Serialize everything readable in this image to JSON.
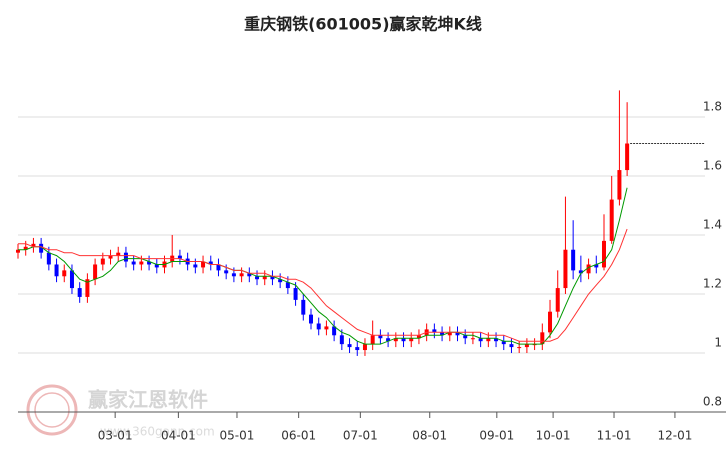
{
  "chart_data": {
    "type": "candlestick",
    "title": "重庆钢铁(601005)赢家乾坤K线",
    "watermark": {
      "name": "赢家江恩软件",
      "url": "www.360gann.com"
    },
    "up_color": "#ff0000",
    "down_color": "#0000ff",
    "xlim": [
      0,
      89.1
    ],
    "xticks": [
      {
        "value": 12.6,
        "label": "03-01"
      },
      {
        "value": 20.8,
        "label": "04-01"
      },
      {
        "value": 28.4,
        "label": "05-01"
      },
      {
        "value": 36.4,
        "label": "06-01"
      },
      {
        "value": 44.4,
        "label": "07-01"
      },
      {
        "value": 53.4,
        "label": "08-01"
      },
      {
        "value": 62.1,
        "label": "09-01"
      },
      {
        "value": 69.4,
        "label": "10-01"
      },
      {
        "value": 77.3,
        "label": "11-01"
      },
      {
        "value": 85.2,
        "label": "12-01"
      }
    ],
    "ylim": [
      0.8,
      2.01
    ],
    "yticks": [
      0.8,
      1,
      1.2,
      1.4,
      1.6,
      1.8
    ],
    "grid": true,
    "reference_line": 1.71,
    "candles": {
      "open": [
        1.34,
        1.35,
        1.36,
        1.37,
        1.34,
        1.3,
        1.26,
        1.28,
        1.22,
        1.19,
        1.25,
        1.3,
        1.32,
        1.33,
        1.34,
        1.31,
        1.3,
        1.31,
        1.3,
        1.29,
        1.31,
        1.33,
        1.32,
        1.3,
        1.29,
        1.31,
        1.3,
        1.28,
        1.27,
        1.26,
        1.27,
        1.26,
        1.25,
        1.26,
        1.25,
        1.24,
        1.22,
        1.18,
        1.13,
        1.1,
        1.08,
        1.09,
        1.06,
        1.03,
        1.02,
        1.01,
        1.03,
        1.06,
        1.05,
        1.04,
        1.05,
        1.04,
        1.05,
        1.06,
        1.08,
        1.07,
        1.06,
        1.07,
        1.06,
        1.05,
        1.05,
        1.04,
        1.05,
        1.04,
        1.03,
        1.02,
        1.02,
        1.03,
        1.03,
        1.07,
        1.14,
        1.22,
        1.35,
        1.28,
        1.27,
        1.3,
        1.29,
        1.38,
        1.52,
        1.62
      ],
      "high": [
        1.37,
        1.38,
        1.39,
        1.39,
        1.36,
        1.32,
        1.3,
        1.3,
        1.24,
        1.27,
        1.32,
        1.34,
        1.35,
        1.36,
        1.36,
        1.33,
        1.33,
        1.33,
        1.32,
        1.33,
        1.4,
        1.35,
        1.34,
        1.32,
        1.33,
        1.33,
        1.32,
        1.3,
        1.29,
        1.29,
        1.29,
        1.28,
        1.28,
        1.28,
        1.27,
        1.26,
        1.24,
        1.2,
        1.15,
        1.12,
        1.11,
        1.11,
        1.08,
        1.05,
        1.04,
        1.05,
        1.11,
        1.08,
        1.07,
        1.07,
        1.07,
        1.07,
        1.08,
        1.1,
        1.1,
        1.09,
        1.09,
        1.09,
        1.08,
        1.07,
        1.07,
        1.07,
        1.07,
        1.06,
        1.05,
        1.04,
        1.05,
        1.05,
        1.1,
        1.18,
        1.28,
        1.53,
        1.45,
        1.33,
        1.32,
        1.33,
        1.47,
        1.6,
        1.89,
        1.85
      ],
      "low": [
        1.32,
        1.33,
        1.34,
        1.32,
        1.28,
        1.24,
        1.24,
        1.2,
        1.17,
        1.17,
        1.23,
        1.28,
        1.3,
        1.31,
        1.29,
        1.28,
        1.28,
        1.28,
        1.27,
        1.27,
        1.29,
        1.3,
        1.28,
        1.27,
        1.27,
        1.28,
        1.26,
        1.25,
        1.24,
        1.24,
        1.24,
        1.23,
        1.23,
        1.23,
        1.22,
        1.2,
        1.16,
        1.11,
        1.08,
        1.06,
        1.06,
        1.04,
        1.01,
        1.0,
        0.99,
        0.99,
        1.01,
        1.03,
        1.02,
        1.02,
        1.02,
        1.02,
        1.03,
        1.04,
        1.05,
        1.04,
        1.04,
        1.04,
        1.03,
        1.03,
        1.02,
        1.02,
        1.02,
        1.01,
        1.0,
        1.0,
        1.0,
        1.01,
        1.01,
        1.05,
        1.12,
        1.2,
        1.25,
        1.24,
        1.25,
        1.27,
        1.28,
        1.37,
        1.5,
        1.6
      ],
      "close": [
        1.35,
        1.36,
        1.37,
        1.34,
        1.3,
        1.26,
        1.28,
        1.22,
        1.19,
        1.25,
        1.3,
        1.32,
        1.33,
        1.34,
        1.31,
        1.3,
        1.31,
        1.3,
        1.29,
        1.31,
        1.33,
        1.32,
        1.3,
        1.29,
        1.31,
        1.3,
        1.28,
        1.27,
        1.26,
        1.27,
        1.26,
        1.25,
        1.26,
        1.25,
        1.24,
        1.22,
        1.18,
        1.13,
        1.1,
        1.08,
        1.09,
        1.06,
        1.03,
        1.02,
        1.01,
        1.03,
        1.06,
        1.05,
        1.04,
        1.05,
        1.04,
        1.05,
        1.06,
        1.08,
        1.07,
        1.06,
        1.07,
        1.06,
        1.05,
        1.05,
        1.04,
        1.05,
        1.04,
        1.03,
        1.02,
        1.02,
        1.03,
        1.03,
        1.07,
        1.14,
        1.22,
        1.35,
        1.28,
        1.27,
        1.3,
        1.29,
        1.38,
        1.52,
        1.62,
        1.71
      ]
    },
    "lines": [
      {
        "color": "#009900",
        "values": [
          1.35,
          1.35,
          1.36,
          1.36,
          1.34,
          1.33,
          1.31,
          1.28,
          1.25,
          1.24,
          1.25,
          1.26,
          1.28,
          1.31,
          1.32,
          1.32,
          1.32,
          1.31,
          1.3,
          1.3,
          1.31,
          1.31,
          1.31,
          1.31,
          1.31,
          1.3,
          1.3,
          1.29,
          1.28,
          1.28,
          1.27,
          1.26,
          1.26,
          1.26,
          1.25,
          1.24,
          1.23,
          1.2,
          1.17,
          1.14,
          1.12,
          1.09,
          1.07,
          1.06,
          1.04,
          1.03,
          1.03,
          1.03,
          1.04,
          1.05,
          1.05,
          1.05,
          1.05,
          1.06,
          1.06,
          1.06,
          1.07,
          1.07,
          1.06,
          1.06,
          1.05,
          1.05,
          1.05,
          1.04,
          1.04,
          1.03,
          1.03,
          1.03,
          1.03,
          1.06,
          1.1,
          1.16,
          1.22,
          1.27,
          1.29,
          1.3,
          1.31,
          1.35,
          1.45,
          1.56
        ]
      },
      {
        "color": "#ff3333",
        "values": [
          1.37,
          1.37,
          1.36,
          1.36,
          1.35,
          1.35,
          1.34,
          1.34,
          1.33,
          1.33,
          1.33,
          1.33,
          1.33,
          1.33,
          1.33,
          1.33,
          1.32,
          1.32,
          1.32,
          1.32,
          1.32,
          1.32,
          1.31,
          1.31,
          1.31,
          1.3,
          1.3,
          1.29,
          1.28,
          1.28,
          1.27,
          1.27,
          1.27,
          1.26,
          1.26,
          1.25,
          1.25,
          1.24,
          1.22,
          1.19,
          1.16,
          1.14,
          1.12,
          1.1,
          1.08,
          1.07,
          1.06,
          1.06,
          1.06,
          1.06,
          1.06,
          1.06,
          1.06,
          1.07,
          1.07,
          1.07,
          1.07,
          1.07,
          1.07,
          1.07,
          1.07,
          1.06,
          1.06,
          1.06,
          1.05,
          1.04,
          1.04,
          1.04,
          1.04,
          1.04,
          1.05,
          1.08,
          1.12,
          1.16,
          1.2,
          1.23,
          1.26,
          1.3,
          1.35,
          1.42
        ]
      }
    ]
  }
}
